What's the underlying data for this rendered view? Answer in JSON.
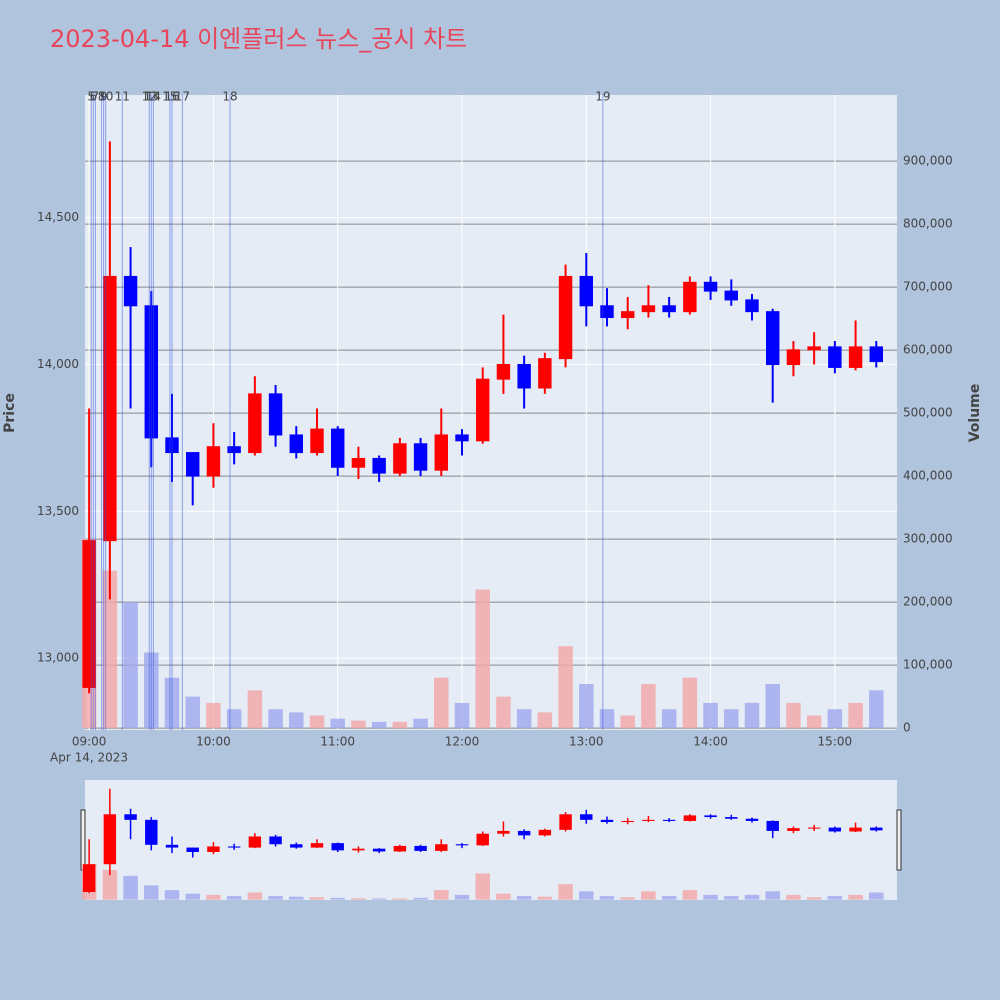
{
  "chart_data": {
    "type": "candlestick",
    "title": "2023-04-14 이엔플러스 뉴스_공시 차트",
    "y_label": "Price",
    "y2_label": "Volume",
    "x_sublabel": "Apr 14, 2023",
    "x": [
      "09:00",
      "09:10",
      "09:20",
      "09:30",
      "09:40",
      "09:50",
      "10:00",
      "10:10",
      "10:20",
      "10:30",
      "10:40",
      "10:50",
      "11:00",
      "11:10",
      "11:20",
      "11:30",
      "11:40",
      "11:50",
      "12:00",
      "12:10",
      "12:20",
      "12:30",
      "12:40",
      "12:50",
      "13:00",
      "13:10",
      "13:20",
      "13:30",
      "13:40",
      "13:50",
      "14:00",
      "14:10",
      "14:20",
      "14:30",
      "14:40",
      "14:50",
      "15:00",
      "15:10",
      "15:20"
    ],
    "open": [
      12900,
      13400,
      14300,
      14200,
      13750,
      13700,
      13620,
      13720,
      13700,
      13900,
      13760,
      13700,
      13780,
      13650,
      13680,
      13630,
      13730,
      13640,
      13760,
      13740,
      13950,
      14000,
      13920,
      14020,
      14300,
      14200,
      14160,
      14180,
      14200,
      14180,
      14280,
      14250,
      14220,
      14180,
      14000,
      14050,
      14060,
      13990,
      14060
    ],
    "high": [
      13850,
      14760,
      14400,
      14250,
      13900,
      13700,
      13800,
      13770,
      13960,
      13930,
      13790,
      13850,
      13790,
      13720,
      13690,
      13750,
      13750,
      13850,
      13780,
      13990,
      14170,
      14030,
      14040,
      14340,
      14380,
      14260,
      14230,
      14270,
      14230,
      14300,
      14300,
      14290,
      14240,
      14190,
      14080,
      14110,
      14080,
      14150,
      14080
    ],
    "low": [
      12880,
      13200,
      13850,
      13650,
      13600,
      13520,
      13580,
      13660,
      13690,
      13720,
      13680,
      13690,
      13620,
      13610,
      13600,
      13620,
      13620,
      13620,
      13690,
      13730,
      13900,
      13850,
      13900,
      13990,
      14130,
      14130,
      14120,
      14160,
      14160,
      14170,
      14220,
      14200,
      14150,
      13870,
      13960,
      14000,
      13970,
      13980,
      13990
    ],
    "close": [
      13400,
      14300,
      14200,
      13750,
      13700,
      13620,
      13720,
      13700,
      13900,
      13760,
      13700,
      13780,
      13650,
      13680,
      13630,
      13730,
      13640,
      13760,
      13740,
      13950,
      14000,
      13920,
      14020,
      14300,
      14200,
      14160,
      14180,
      14200,
      14180,
      14280,
      14250,
      14220,
      14180,
      14000,
      14050,
      14060,
      13990,
      14060,
      14010
    ],
    "volume": [
      300000,
      250000,
      200000,
      120000,
      80000,
      50000,
      40000,
      30000,
      60000,
      30000,
      25000,
      20000,
      15000,
      12000,
      10000,
      10000,
      15000,
      80000,
      40000,
      220000,
      50000,
      30000,
      25000,
      130000,
      70000,
      30000,
      20000,
      70000,
      30000,
      80000,
      40000,
      30000,
      40000,
      70000,
      40000,
      20000,
      30000,
      40000,
      60000
    ],
    "increasing_color": "#ff0000",
    "decreasing_color": "#0000ff",
    "increasing_volume_color": "#f4a6a6",
    "decreasing_volume_color": "#9fa8ef",
    "xlim": [
      "08:58",
      "15:30"
    ],
    "xticks": [
      "09:00",
      "10:00",
      "11:00",
      "12:00",
      "13:00",
      "14:00",
      "15:00"
    ],
    "ylim": [
      12755,
      14918
    ],
    "yticks": [
      {
        "value": 13000,
        "label": "13,000"
      },
      {
        "value": 13500,
        "label": "13,500"
      },
      {
        "value": 14000,
        "label": "14,000"
      },
      {
        "value": 14500,
        "label": "14,500"
      }
    ],
    "y2lim": [
      -3000,
      1005000
    ],
    "y2ticks": [
      0,
      {
        "value": 100000,
        "label": "100,000"
      },
      {
        "value": 200000,
        "label": "200,000"
      },
      {
        "value": 300000,
        "label": "300,000"
      },
      {
        "value": 400000,
        "label": "400,000"
      },
      {
        "value": 500000,
        "label": "500,000"
      },
      {
        "value": 600000,
        "label": "600,000"
      },
      {
        "value": 700000,
        "label": "700,000"
      },
      {
        "value": 800000,
        "label": "800,000"
      },
      {
        "value": 900000,
        "label": "900,000"
      }
    ],
    "events": [
      {
        "label": "5",
        "x": "09:01"
      },
      {
        "label": "6",
        "x": "09:02"
      },
      {
        "label": "7",
        "x": "09:03"
      },
      {
        "label": "8",
        "x": "09:06"
      },
      {
        "label": "9",
        "x": "09:07"
      },
      {
        "label": "10",
        "x": "09:08"
      },
      {
        "label": "11",
        "x": "09:16"
      },
      {
        "label": "12",
        "x": "09:29"
      },
      {
        "label": "13",
        "x": "09:30"
      },
      {
        "label": "14",
        "x": "09:31"
      },
      {
        "label": "15",
        "x": "09:39"
      },
      {
        "label": "16",
        "x": "09:40"
      },
      {
        "label": "17",
        "x": "09:45"
      },
      {
        "label": "18",
        "x": "10:08"
      },
      {
        "label": "19",
        "x": "13:08"
      }
    ]
  }
}
